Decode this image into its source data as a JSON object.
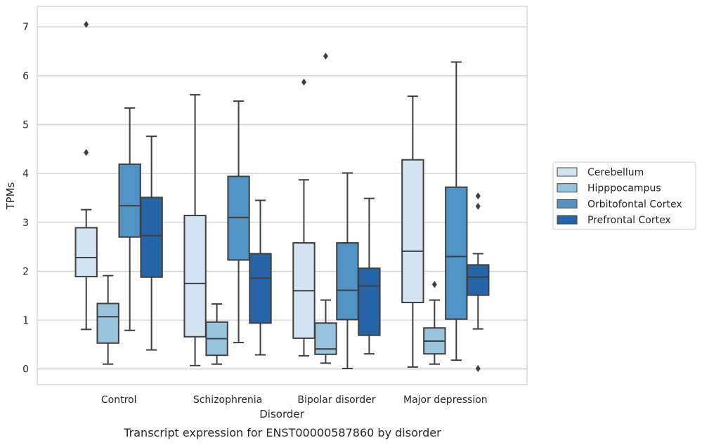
{
  "chart_data": {
    "type": "box",
    "title": "",
    "caption": "Transcript expression for ENST00000587860 by disorder",
    "xlabel": "Disorder",
    "ylabel": "TPMs",
    "ylim": [
      -0.32,
      7.42
    ],
    "yticks": [
      0,
      1,
      2,
      3,
      4,
      5,
      6,
      7
    ],
    "grid": "horizontal",
    "legend_position": "right",
    "categories": [
      "Control",
      "Schizophrenia",
      "Bipolar disorder",
      "Major depression"
    ],
    "series": [
      {
        "name": "Cerebellum",
        "color": "#d3e3f2",
        "boxes": [
          {
            "whisker_low": 0.81,
            "q1": 1.89,
            "median": 2.28,
            "q3": 2.89,
            "whisker_high": 3.26,
            "outliers": [
              4.43,
              7.05
            ]
          },
          {
            "whisker_low": 0.07,
            "q1": 0.66,
            "median": 1.75,
            "q3": 3.14,
            "whisker_high": 5.61,
            "outliers": []
          },
          {
            "whisker_low": 0.27,
            "q1": 0.63,
            "median": 1.6,
            "q3": 2.58,
            "whisker_high": 3.87,
            "outliers": [
              5.87
            ]
          },
          {
            "whisker_low": 0.04,
            "q1": 1.36,
            "median": 2.41,
            "q3": 4.28,
            "whisker_high": 5.58,
            "outliers": []
          }
        ]
      },
      {
        "name": "Hipppocampus",
        "color": "#9ac3de",
        "boxes": [
          {
            "whisker_low": 0.1,
            "q1": 0.53,
            "median": 1.07,
            "q3": 1.34,
            "whisker_high": 1.91,
            "outliers": []
          },
          {
            "whisker_low": 0.1,
            "q1": 0.28,
            "median": 0.62,
            "q3": 0.96,
            "whisker_high": 1.33,
            "outliers": []
          },
          {
            "whisker_low": 0.12,
            "q1": 0.3,
            "median": 0.41,
            "q3": 0.94,
            "whisker_high": 1.41,
            "outliers": [
              6.4
            ]
          },
          {
            "whisker_low": 0.1,
            "q1": 0.31,
            "median": 0.57,
            "q3": 0.84,
            "whisker_high": 1.41,
            "outliers": [
              1.73
            ]
          }
        ]
      },
      {
        "name": "Orbitofontal Cortex",
        "color": "#5093c4",
        "boxes": [
          {
            "whisker_low": 0.79,
            "q1": 2.7,
            "median": 3.34,
            "q3": 4.19,
            "whisker_high": 5.34,
            "outliers": []
          },
          {
            "whisker_low": 0.54,
            "q1": 2.23,
            "median": 3.1,
            "q3": 3.94,
            "whisker_high": 5.48,
            "outliers": []
          },
          {
            "whisker_low": 0.01,
            "q1": 1.01,
            "median": 1.61,
            "q3": 2.58,
            "whisker_high": 4.01,
            "outliers": []
          },
          {
            "whisker_low": 0.18,
            "q1": 1.02,
            "median": 2.3,
            "q3": 3.72,
            "whisker_high": 6.28,
            "outliers": []
          }
        ]
      },
      {
        "name": "Prefrontal Cortex",
        "color": "#2764a5",
        "boxes": [
          {
            "whisker_low": 0.39,
            "q1": 1.88,
            "median": 2.73,
            "q3": 3.51,
            "whisker_high": 4.76,
            "outliers": []
          },
          {
            "whisker_low": 0.29,
            "q1": 0.94,
            "median": 1.86,
            "q3": 2.36,
            "whisker_high": 3.45,
            "outliers": []
          },
          {
            "whisker_low": 0.31,
            "q1": 0.69,
            "median": 1.7,
            "q3": 2.06,
            "whisker_high": 3.49,
            "outliers": []
          },
          {
            "whisker_low": 0.82,
            "q1": 1.51,
            "median": 1.88,
            "q3": 2.13,
            "whisker_high": 2.36,
            "outliers": [
              0.01,
              3.33,
              3.54
            ]
          }
        ]
      }
    ]
  }
}
